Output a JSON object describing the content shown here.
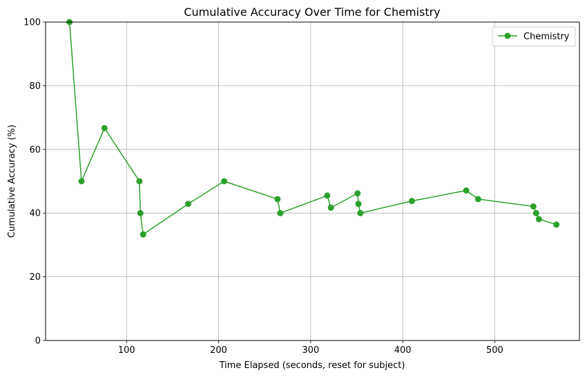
{
  "chart_data": {
    "type": "line",
    "title": "Cumulative Accuracy Over Time for Chemistry",
    "xlabel": "Time Elapsed (seconds, reset for subject)",
    "ylabel": "Cumulative Accuracy (%)",
    "xlim": [
      12,
      592
    ],
    "ylim": [
      0,
      100
    ],
    "xticks": [
      100,
      200,
      300,
      400,
      500
    ],
    "yticks": [
      0,
      20,
      40,
      60,
      80,
      100
    ],
    "grid": true,
    "legend_position": "top-right",
    "series": [
      {
        "name": "Chemistry",
        "color": "#2ca02c",
        "marker": "circle",
        "x": [
          38,
          51,
          76,
          114,
          115,
          118,
          167,
          206,
          264,
          267,
          318,
          322,
          351,
          352,
          354,
          410,
          469,
          482,
          542,
          545,
          548,
          567
        ],
        "y": [
          100,
          50,
          66.7,
          50,
          40,
          33.3,
          42.9,
          50,
          44.4,
          40,
          45.5,
          41.7,
          46.2,
          42.9,
          40,
          43.8,
          47.1,
          44.4,
          42.1,
          40,
          38.1,
          36.4
        ]
      }
    ]
  }
}
